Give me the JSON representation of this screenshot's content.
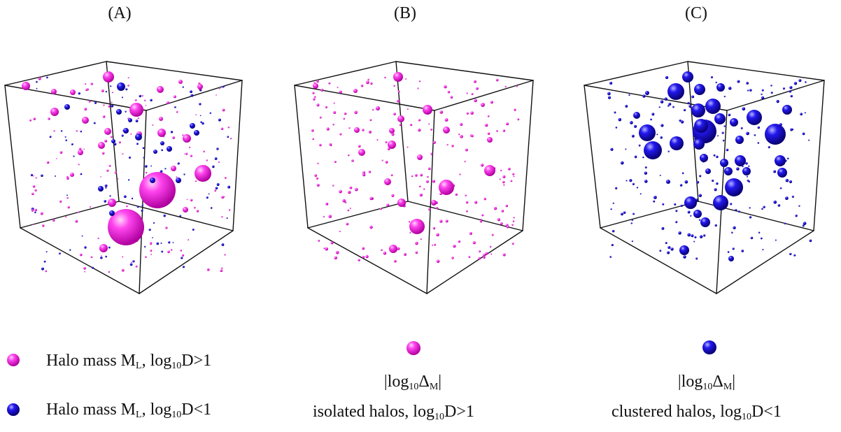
{
  "panels": [
    {
      "id": "A",
      "label": "(A)"
    },
    {
      "id": "B",
      "label": "(B)"
    },
    {
      "id": "C",
      "label": "(C)"
    }
  ],
  "colors": {
    "magenta": "#ff22ee",
    "blue": "#1a10e6",
    "frame": "#111111"
  },
  "legend": {
    "a1": {
      "pre": "Halo mass M",
      "sub1": "L",
      "mid": ", log",
      "sub2": "10",
      "post": "D>1",
      "color": "magenta"
    },
    "a2": {
      "pre": "Halo mass M",
      "sub1": "L",
      "mid": ", log",
      "sub2": "10",
      "post": "D<1",
      "color": "blue"
    },
    "b1": {
      "pre": "|log",
      "sub1": "10",
      "mid": "Δ",
      "sub2": "M",
      "post": "|"
    },
    "b2": {
      "pre": "isolated halos, log",
      "sub": "10",
      "post": "D>1",
      "color": "magenta"
    },
    "c1": {
      "pre": "|log",
      "sub1": "10",
      "mid": "Δ",
      "sub2": "M",
      "post": "|"
    },
    "c2": {
      "pre": "clustered halos, log",
      "sub": "10",
      "post": "D<1",
      "color": "blue"
    }
  }
}
